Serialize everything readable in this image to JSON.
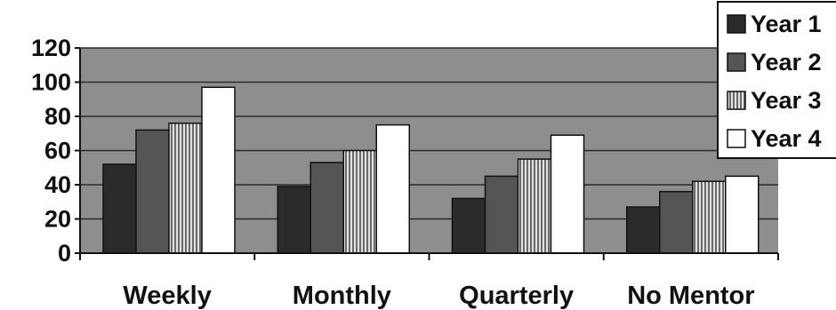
{
  "chart_data": {
    "type": "bar",
    "categories": [
      "Weekly",
      "Monthly",
      "Quarterly",
      "No Mentor"
    ],
    "series": [
      {
        "name": "Year 1",
        "values": [
          52,
          39,
          32,
          27
        ]
      },
      {
        "name": "Year 2",
        "values": [
          72,
          53,
          45,
          36
        ]
      },
      {
        "name": "Year 3",
        "values": [
          76,
          60,
          55,
          42
        ]
      },
      {
        "name": "Year 4",
        "values": [
          97,
          75,
          69,
          45
        ]
      }
    ],
    "yticks": [
      "0",
      "20",
      "40",
      "60",
      "80",
      "100",
      "120"
    ],
    "ylim": [
      0,
      120
    ],
    "grid": true,
    "legend": "top-right",
    "colors": {
      "plot_bg": "#8e8e8e",
      "gridline": "#2a2a2a",
      "Year 1": "#2b2b2b",
      "Year 2": "#555555",
      "Year 3": "#c8c8c8",
      "Year 4": "#ffffff"
    }
  }
}
